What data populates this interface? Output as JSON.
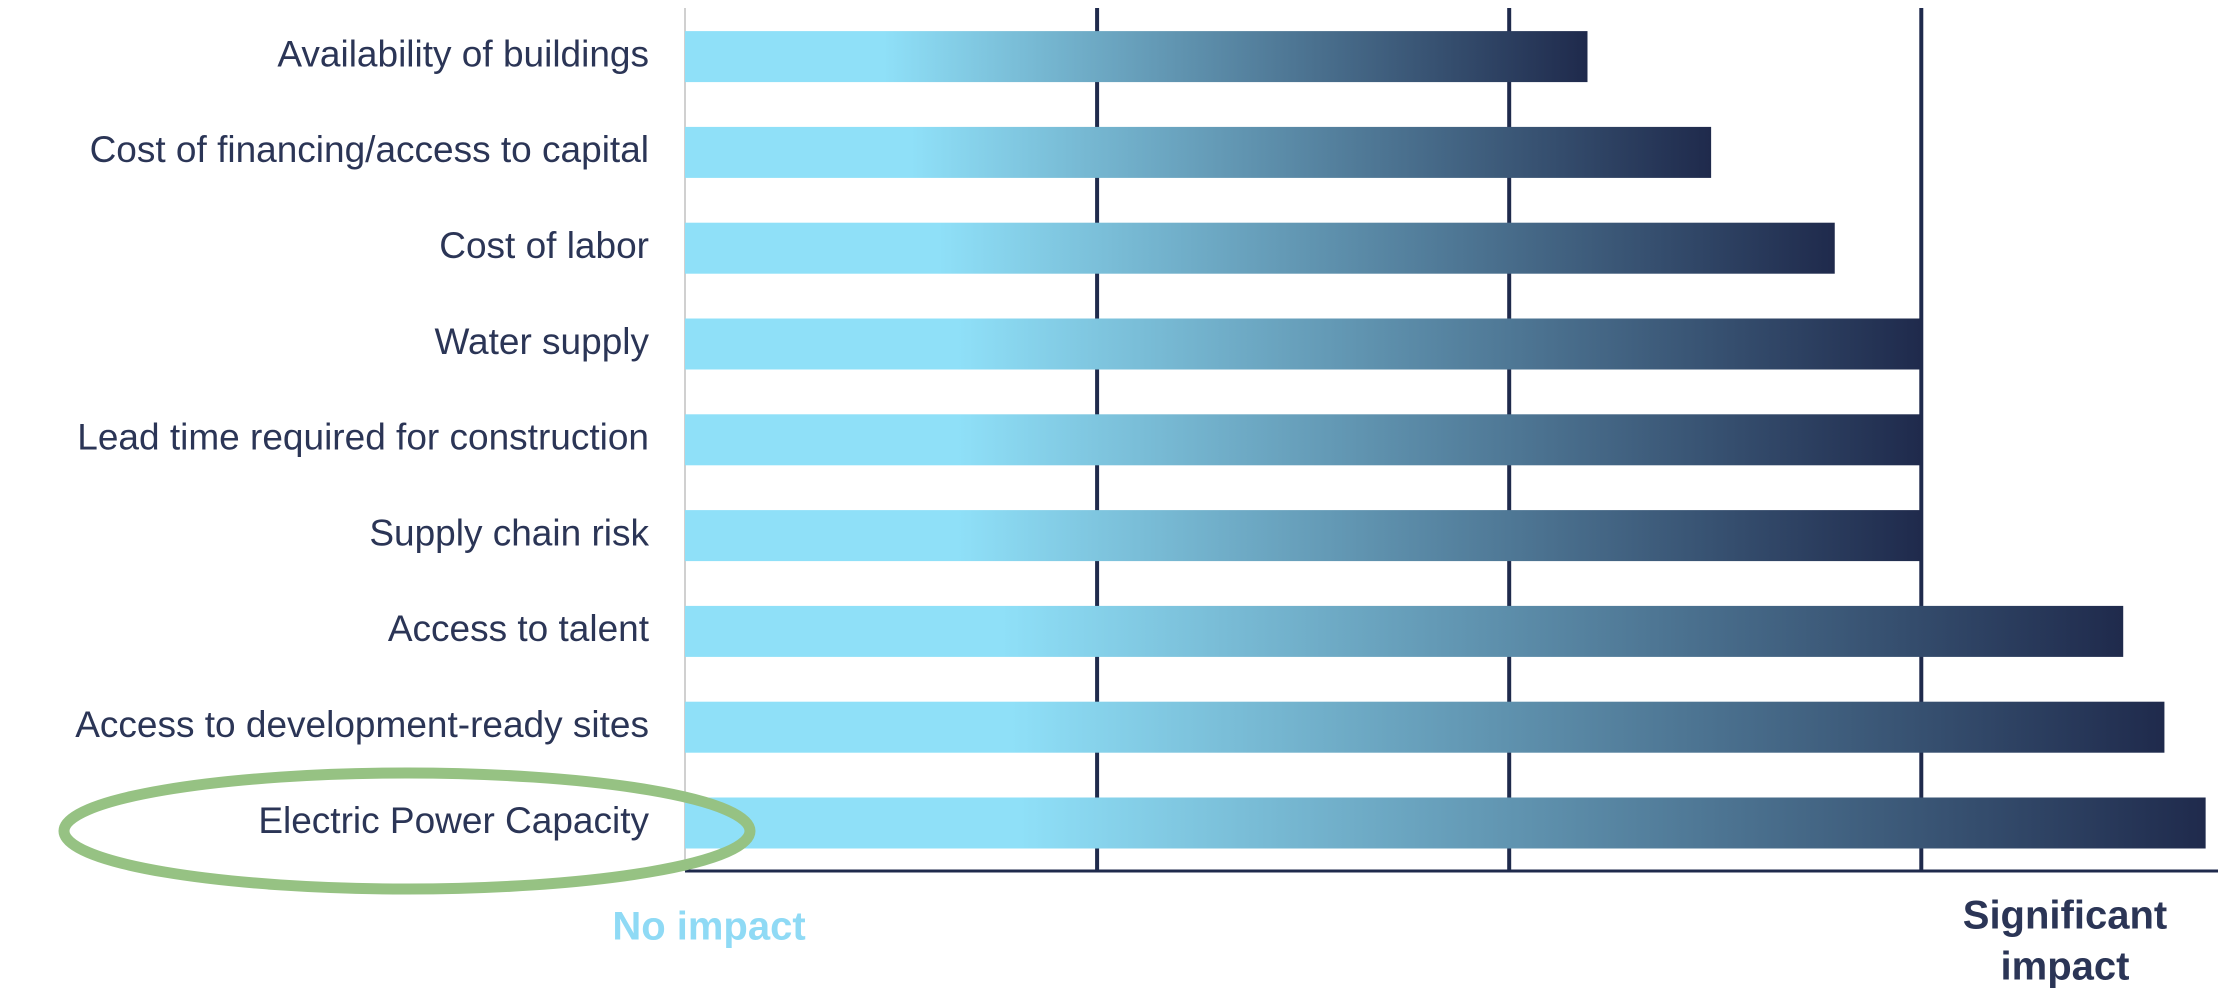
{
  "chart_data": {
    "type": "bar",
    "orientation": "horizontal",
    "categories": [
      "Availability of buildings",
      "Cost of financing/access to capital",
      "Cost of labor",
      "Water supply",
      "Lead time required for construction",
      "Supply chain risk",
      "Access to talent",
      "Access to development-ready sites",
      "Electric Power Capacity"
    ],
    "values": [
      2.19,
      2.49,
      2.79,
      3.0,
      3.0,
      3.0,
      3.49,
      3.59,
      3.69
    ],
    "color_start": "#8fe0f8",
    "color_end": "#1f2a4c",
    "xlim": [
      0,
      3.72
    ],
    "xticks": [
      1,
      2,
      3
    ],
    "grid": true,
    "annotations": {
      "low": "No impact",
      "high": [
        "Significant",
        "impact"
      ]
    },
    "highlight": {
      "category_index": 8,
      "color": "#96c283"
    }
  }
}
